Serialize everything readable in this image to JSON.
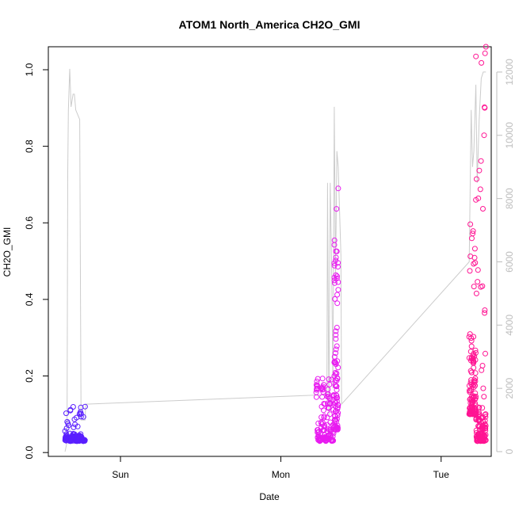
{
  "chart_data": {
    "type": "scatter",
    "title": "ATOM1 North_America CH2O_GMI",
    "xlabel": "Date",
    "ylabel": "CH2O_GMI",
    "x_ticks": [
      "Sun",
      "Mon",
      "Tue"
    ],
    "y_left_ticks": [
      "0.0",
      "0.2",
      "0.4",
      "0.6",
      "0.8",
      "1.0"
    ],
    "y_right_ticks": [
      "0",
      "2000",
      "4000",
      "6000",
      "8000",
      "10000",
      "12000"
    ],
    "x_unit": "hours since Sat 00:00",
    "xlim": [
      13.2,
      79.5
    ],
    "ylim_left": [
      -0.01,
      1.06
    ],
    "ylim_right": [
      -150,
      12800
    ],
    "colors": {
      "altitude_line": "#cccccc",
      "right_axis": "#bdbdbd",
      "series": [
        "#5a1fff",
        "#e81bf0",
        "#ff1493"
      ]
    },
    "series": [
      {
        "segments": [
          {
            "start": 15.7,
            "end": 18.7,
            "base": [
              0.03,
              0.05
            ],
            "peak": 0.12,
            "color": "#5a1fff",
            "count": 160
          }
        ]
      },
      {
        "segments": [
          {
            "start": 53.3,
            "end": 56.0,
            "base": [
              0.03,
              0.2
            ],
            "peak": 0.2,
            "color": "#e81bf0",
            "count": 140
          },
          {
            "start": 56.0,
            "end": 56.6,
            "base": [
              0.06,
              0.69
            ],
            "peak": 0.69,
            "color": "#e81bf0",
            "count": 90
          }
        ]
      },
      {
        "segments": [
          {
            "start": 76.2,
            "end": 77.2,
            "base": [
              0.1,
              0.33
            ],
            "peak": 0.66,
            "color": "#ff1493",
            "count": 120
          },
          {
            "start": 77.2,
            "end": 78.7,
            "base": [
              0.03,
              0.12
            ],
            "peak": 1.06,
            "color": "#ff1493",
            "count": 150
          }
        ]
      }
    ],
    "altitude": {
      "x": [
        15.7,
        16.0,
        16.1,
        16.2,
        16.4,
        16.6,
        16.9,
        17.1,
        17.3,
        17.5,
        17.9,
        18.1,
        18.4,
        18.7,
        18.8,
        54.9,
        55.0,
        55.2,
        55.4,
        55.6,
        55.8,
        56.0,
        56.2,
        56.4,
        56.6,
        57.0,
        57.1,
        76.2,
        76.5,
        76.7,
        76.9,
        77.2,
        77.4,
        77.7,
        78.0,
        78.3,
        78.5,
        78.7
      ],
      "y": [
        0,
        300,
        8800,
        10800,
        12100,
        10900,
        11300,
        11300,
        10800,
        10700,
        10500,
        1000,
        1000,
        1000,
        1500,
        1800,
        8500,
        1100,
        8500,
        6000,
        2000,
        10900,
        5500,
        9500,
        9000,
        6200,
        1500,
        6000,
        10800,
        9000,
        9500,
        11600,
        8500,
        10500,
        11800,
        12000,
        12000,
        12000
      ]
    }
  }
}
